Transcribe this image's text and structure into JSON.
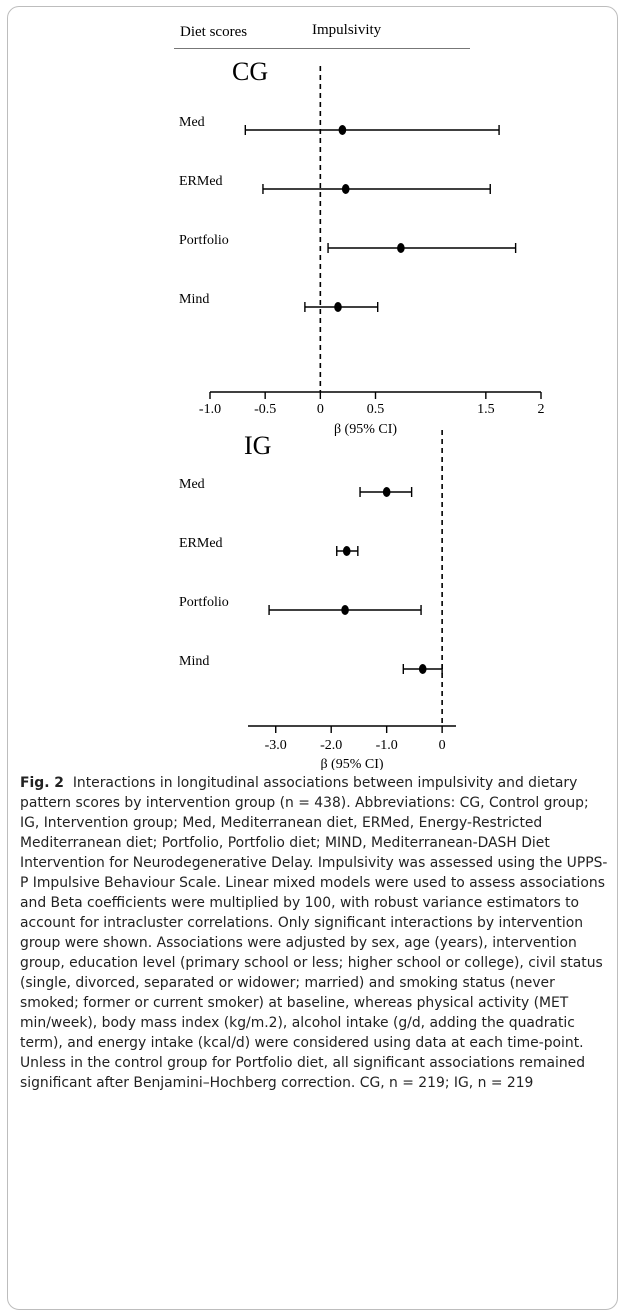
{
  "header": {
    "diet_scores": "Diet scores",
    "impulsivity": "Impulsivity"
  },
  "chart_data": [
    {
      "type": "forest",
      "panel_label": "CG",
      "xlabel": "β (95% CI)",
      "xlim": [
        -1.0,
        2.0
      ],
      "ticks": [
        -1.0,
        -0.5,
        0,
        0.5,
        1.5,
        2
      ],
      "tick_labels": [
        "-1.0",
        "-0.5",
        "0",
        "0.5",
        "1.5",
        "2"
      ],
      "reference_line": 0,
      "rows": [
        {
          "label": "Med",
          "estimate": 0.2,
          "lower": -0.68,
          "upper": 1.62
        },
        {
          "label": "ERMed",
          "estimate": 0.23,
          "lower": -0.52,
          "upper": 1.54
        },
        {
          "label": "Portfolio",
          "estimate": 0.73,
          "lower": 0.07,
          "upper": 1.77
        },
        {
          "label": "Mind",
          "estimate": 0.16,
          "lower": -0.14,
          "upper": 0.52
        }
      ]
    },
    {
      "type": "forest",
      "panel_label": "IG",
      "xlabel": "β (95% CI)",
      "xlim": [
        -3.5,
        0.25
      ],
      "ticks": [
        -3.0,
        -2.0,
        -1.0,
        0
      ],
      "tick_labels": [
        "-3.0",
        "-2.0",
        "-1.0",
        "0"
      ],
      "reference_line": 0,
      "rows": [
        {
          "label": "Med",
          "estimate": -1.0,
          "lower": -1.48,
          "upper": -0.55
        },
        {
          "label": "ERMed",
          "estimate": -1.72,
          "lower": -1.9,
          "upper": -1.52
        },
        {
          "label": "Portfolio",
          "estimate": -1.75,
          "lower": -3.12,
          "upper": -0.38
        },
        {
          "label": "Mind",
          "estimate": -0.35,
          "lower": -0.7,
          "upper": 0.0
        }
      ]
    }
  ],
  "caption": {
    "fig_label": "Fig. 2",
    "text": "Interactions in longitudinal associations between impulsivity and dietary pattern scores by intervention group (n = 438). Abbreviations: CG, Control group; IG, Intervention group; Med, Mediterranean diet, ERMed, Energy-Restricted Mediterranean diet; Portfolio, Portfolio diet; MIND, Mediterranean-DASH Diet Intervention for Neurodegenerative Delay. Impulsivity was assessed using the UPPS-P Impulsive Behaviour Scale. Linear mixed models were used to assess associations and Beta coefficients were multiplied by 100, with robust variance estimators to account for intracluster correlations. Only significant interactions by intervention group were shown. Associations were adjusted by sex, age (years), intervention group, education level (primary school or less; higher school or college), civil status (single, divorced, separated or widower; married) and smoking status (never smoked; former or current smoker) at baseline, whereas physical activity (MET min/week), body mass index (kg/m.2), alcohol intake (g/d, adding the quadratic term), and energy intake (kcal/d) were considered using data at each time-point. Unless in the control group for Portfolio diet, all significant associations remained significant after Benjamini–Hochberg correction. CG, n = 219; IG, n = 219"
  }
}
